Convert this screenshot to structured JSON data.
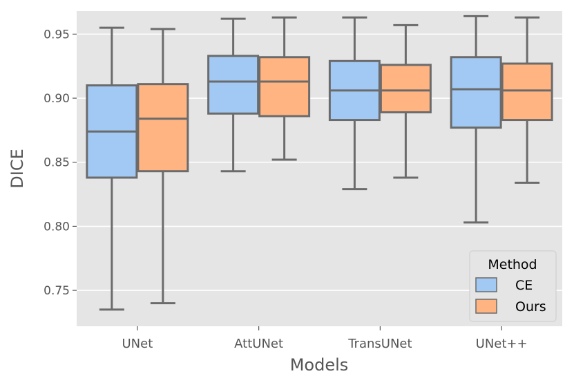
{
  "chart_data": {
    "type": "box",
    "xlabel": "Models",
    "ylabel": "DICE",
    "ylim": [
      0.722,
      0.968
    ],
    "yticks": [
      "0.75",
      "0.80",
      "0.85",
      "0.90",
      "0.95"
    ],
    "categories": [
      "UNet",
      "AttUNet",
      "TransUNet",
      "UNet++"
    ],
    "grid": true,
    "legend": {
      "title": "Method",
      "placement": "bottom-right"
    },
    "series": [
      {
        "name": "CE",
        "color": "#a1c9f4",
        "boxes": [
          {
            "whislo": 0.735,
            "q1": 0.838,
            "med": 0.874,
            "q3": 0.91,
            "whishi": 0.955
          },
          {
            "whislo": 0.843,
            "q1": 0.888,
            "med": 0.913,
            "q3": 0.933,
            "whishi": 0.962
          },
          {
            "whislo": 0.829,
            "q1": 0.883,
            "med": 0.906,
            "q3": 0.929,
            "whishi": 0.963
          },
          {
            "whislo": 0.803,
            "q1": 0.877,
            "med": 0.907,
            "q3": 0.932,
            "whishi": 0.964
          }
        ]
      },
      {
        "name": "Ours",
        "color": "#ffb482",
        "boxes": [
          {
            "whislo": 0.74,
            "q1": 0.843,
            "med": 0.884,
            "q3": 0.911,
            "whishi": 0.954
          },
          {
            "whislo": 0.852,
            "q1": 0.886,
            "med": 0.913,
            "q3": 0.932,
            "whishi": 0.963
          },
          {
            "whislo": 0.838,
            "q1": 0.889,
            "med": 0.906,
            "q3": 0.926,
            "whishi": 0.957
          },
          {
            "whislo": 0.834,
            "q1": 0.883,
            "med": 0.906,
            "q3": 0.927,
            "whishi": 0.963
          }
        ]
      }
    ]
  }
}
